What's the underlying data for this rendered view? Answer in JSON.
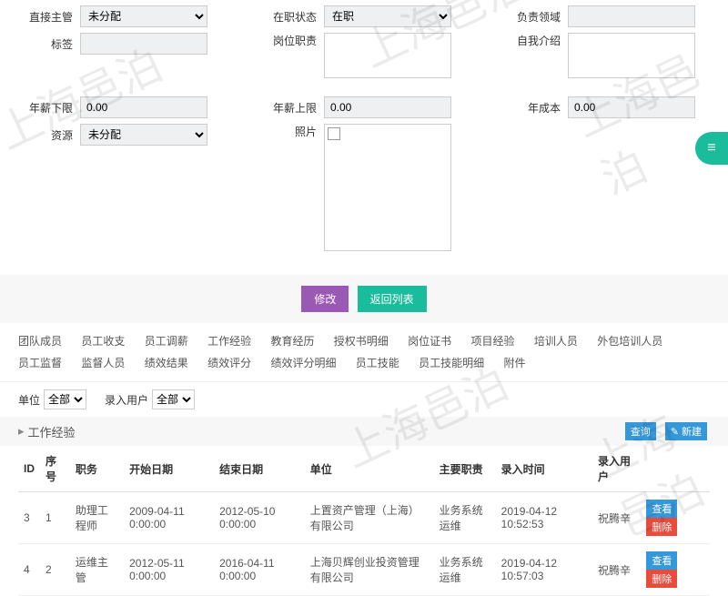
{
  "watermarks": [
    "上海邑泊",
    "上海邑泊",
    "上海邑泊",
    "上海邑泊",
    "上海邑泊"
  ],
  "form": {
    "row1": {
      "supervisor_label": "直接主管",
      "supervisor_value": "未分配",
      "status_label": "在职状态",
      "status_value": "在职",
      "area_label": "负责领域",
      "area_value": ""
    },
    "row2": {
      "tag_label": "标签",
      "tag_value": "",
      "duty_label": "岗位职责",
      "duty_value": "",
      "intro_label": "自我介绍",
      "intro_value": ""
    },
    "row3": {
      "salmin_label": "年薪下限",
      "salmin_value": "0.00",
      "salmax_label": "年薪上限",
      "salmax_value": "0.00",
      "cost_label": "年成本",
      "cost_value": "0.00"
    },
    "row4": {
      "resource_label": "资源",
      "resource_value": "未分配",
      "photo_label": "照片"
    }
  },
  "buttons": {
    "modify": "修改",
    "back": "返回列表",
    "query": "查询",
    "create": "新建"
  },
  "tabs": [
    "团队成员",
    "员工收支",
    "员工调薪",
    "工作经验",
    "教育经历",
    "授权书明细",
    "岗位证书",
    "项目经验",
    "培训人员",
    "外包培训人员",
    "员工监督",
    "监督人员",
    "绩效结果",
    "绩效评分",
    "绩效评分明细",
    "员工技能",
    "员工技能明细",
    "附件"
  ],
  "filters": {
    "unit_label": "单位",
    "unit_value": "全部",
    "user_label": "录入用户",
    "user_value": "全部"
  },
  "section_title": "工作经验",
  "table": {
    "headers": [
      "ID",
      "序号",
      "职务",
      "开始日期",
      "结束日期",
      "单位",
      "主要职责",
      "录入时间",
      "录入用户",
      ""
    ],
    "rows": [
      {
        "id": "3",
        "seq": "1",
        "job": "助理工程师",
        "start": "2009-04-11 0:00:00",
        "end": "2012-05-10 0:00:00",
        "unit": "上置资产管理（上海）有限公司",
        "duty": "业务系统运维",
        "time": "2019-04-12 10:52:53",
        "user": "祝腾辛"
      },
      {
        "id": "4",
        "seq": "2",
        "job": "运维主管",
        "start": "2012-05-11 0:00:00",
        "end": "2016-04-11 0:00:00",
        "unit": "上海贝辉创业投资管理有限公司",
        "duty": "业务系统运维",
        "time": "2019-04-12 10:57:03",
        "user": "祝腾辛"
      }
    ],
    "row_actions": {
      "view": "查看",
      "delete": "删除"
    }
  }
}
